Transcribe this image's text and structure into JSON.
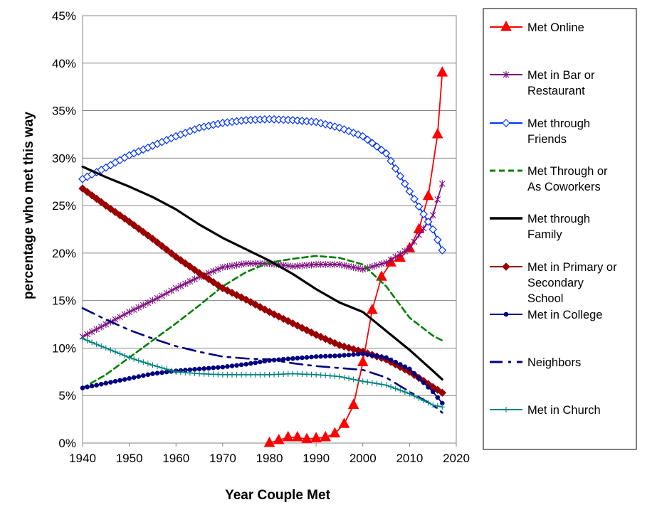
{
  "chart_data": {
    "type": "line",
    "title": "",
    "xlabel": "Year Couple Met",
    "ylabel": "percentage who met this way",
    "xlim": [
      1940,
      2020
    ],
    "ylim": [
      0,
      45
    ],
    "x_ticks": [
      "1940",
      "1950",
      "1960",
      "1970",
      "1980",
      "1990",
      "2000",
      "2010",
      "2020"
    ],
    "y_ticks": [
      "0%",
      "5%",
      "10%",
      "15%",
      "20%",
      "25%",
      "30%",
      "35%",
      "40%",
      "45%"
    ],
    "grid": "horizontal",
    "legend_position": "right",
    "series": [
      {
        "name": "Met Online",
        "name_lines": [
          "Met Online"
        ],
        "color": "#ff0000",
        "style": "solid",
        "marker": "triangle",
        "x": [
          1980,
          1982,
          1984,
          1986,
          1988,
          1990,
          1992,
          1994,
          1996,
          1998,
          2000,
          2002,
          2004,
          2006,
          2008,
          2010,
          2012,
          2014,
          2016,
          2017
        ],
        "y": [
          0.0,
          0.3,
          0.6,
          0.6,
          0.4,
          0.5,
          0.6,
          1.0,
          2.0,
          4.0,
          8.5,
          14.0,
          17.5,
          19.0,
          19.5,
          20.5,
          22.5,
          26.0,
          32.5,
          39.0
        ]
      },
      {
        "name": "Met in Bar or Restaurant",
        "name_lines": [
          "Met in Bar or",
          "Restaurant"
        ],
        "color": "#7f0f7f",
        "style": "solid",
        "marker": "asterisk",
        "x": [
          1940,
          1945,
          1950,
          1955,
          1960,
          1965,
          1970,
          1975,
          1980,
          1985,
          1990,
          1995,
          2000,
          2005,
          2010,
          2015,
          2017
        ],
        "y": [
          11.2,
          12.5,
          13.8,
          15.0,
          16.3,
          17.5,
          18.5,
          18.9,
          18.9,
          18.6,
          18.8,
          18.8,
          18.3,
          19.0,
          20.5,
          24.0,
          27.3
        ]
      },
      {
        "name": "Met through Friends",
        "name_lines": [
          "Met through",
          "Friends"
        ],
        "color": "#0033ff",
        "style": "solid",
        "marker": "diamond",
        "x": [
          1940,
          1945,
          1950,
          1955,
          1960,
          1965,
          1970,
          1975,
          1980,
          1985,
          1990,
          1995,
          2000,
          2005,
          2010,
          2015,
          2017
        ],
        "y": [
          27.8,
          29.0,
          30.3,
          31.3,
          32.3,
          33.2,
          33.7,
          34.0,
          34.1,
          34.0,
          33.8,
          33.2,
          32.3,
          30.5,
          26.5,
          22.5,
          20.3
        ]
      },
      {
        "name": "Met Through or As Coworkers",
        "name_lines": [
          "Met Through or",
          "As Coworkers"
        ],
        "color": "#008000",
        "style": "dashed",
        "marker": "none",
        "x": [
          1940,
          1945,
          1950,
          1955,
          1960,
          1965,
          1970,
          1975,
          1980,
          1985,
          1990,
          1995,
          2000,
          2005,
          2010,
          2015,
          2017
        ],
        "y": [
          5.8,
          7.2,
          9.0,
          10.8,
          12.6,
          14.5,
          16.5,
          18.0,
          19.0,
          19.4,
          19.7,
          19.5,
          18.8,
          16.5,
          13.2,
          11.3,
          10.8
        ]
      },
      {
        "name": "Met through Family",
        "name_lines": [
          "Met through",
          "Family"
        ],
        "color": "#000000",
        "style": "solid",
        "marker": "none",
        "x": [
          1940,
          1945,
          1950,
          1955,
          1960,
          1965,
          1970,
          1975,
          1980,
          1985,
          1990,
          1995,
          2000,
          2005,
          2010,
          2015,
          2017
        ],
        "y": [
          29.1,
          28.0,
          27.0,
          25.9,
          24.6,
          23.0,
          21.6,
          20.4,
          19.2,
          17.8,
          16.2,
          14.8,
          13.8,
          11.8,
          9.8,
          7.6,
          6.7
        ]
      },
      {
        "name": "Met in Primary or Secondary School",
        "name_lines": [
          "Met in Primary or",
          "Secondary",
          "School"
        ],
        "color": "#990000",
        "style": "solid",
        "marker": "diamond-filled",
        "x": [
          1940,
          1945,
          1950,
          1955,
          1960,
          1965,
          1970,
          1975,
          1980,
          1985,
          1990,
          1995,
          2000,
          2005,
          2010,
          2015,
          2017
        ],
        "y": [
          26.8,
          25.0,
          23.3,
          21.5,
          19.6,
          17.9,
          16.3,
          15.1,
          13.8,
          12.6,
          11.4,
          10.3,
          9.6,
          8.8,
          7.5,
          5.9,
          5.3
        ]
      },
      {
        "name": "Met in College",
        "name_lines": [
          "Met in College"
        ],
        "color": "#000080",
        "style": "solid",
        "marker": "circle",
        "x": [
          1940,
          1945,
          1950,
          1955,
          1960,
          1965,
          1970,
          1975,
          1980,
          1985,
          1990,
          1995,
          2000,
          2005,
          2010,
          2015,
          2017
        ],
        "y": [
          5.8,
          6.3,
          6.8,
          7.3,
          7.6,
          7.8,
          8.0,
          8.3,
          8.7,
          8.9,
          9.1,
          9.2,
          9.4,
          9.0,
          7.8,
          5.4,
          4.2
        ]
      },
      {
        "name": "Neighbors",
        "name_lines": [
          "Neighbors"
        ],
        "color": "#000080",
        "style": "dashdot",
        "marker": "none",
        "x": [
          1940,
          1945,
          1950,
          1955,
          1960,
          1965,
          1970,
          1975,
          1980,
          1985,
          1990,
          1995,
          2000,
          2005,
          2010,
          2015,
          2017
        ],
        "y": [
          14.2,
          13.0,
          11.9,
          11.0,
          10.2,
          9.6,
          9.1,
          8.9,
          8.8,
          8.4,
          8.1,
          7.9,
          7.7,
          6.9,
          5.4,
          4.0,
          3.2
        ]
      },
      {
        "name": "Met in Church",
        "name_lines": [
          "Met in Church"
        ],
        "color": "#008080",
        "style": "solid",
        "marker": "plus",
        "x": [
          1940,
          1945,
          1950,
          1955,
          1960,
          1965,
          1970,
          1975,
          1980,
          1985,
          1990,
          1995,
          2000,
          2005,
          2010,
          2015,
          2017
        ],
        "y": [
          11.0,
          10.0,
          9.0,
          8.2,
          7.5,
          7.3,
          7.2,
          7.2,
          7.2,
          7.3,
          7.2,
          7.0,
          6.5,
          6.1,
          5.2,
          4.0,
          3.8
        ]
      }
    ]
  }
}
